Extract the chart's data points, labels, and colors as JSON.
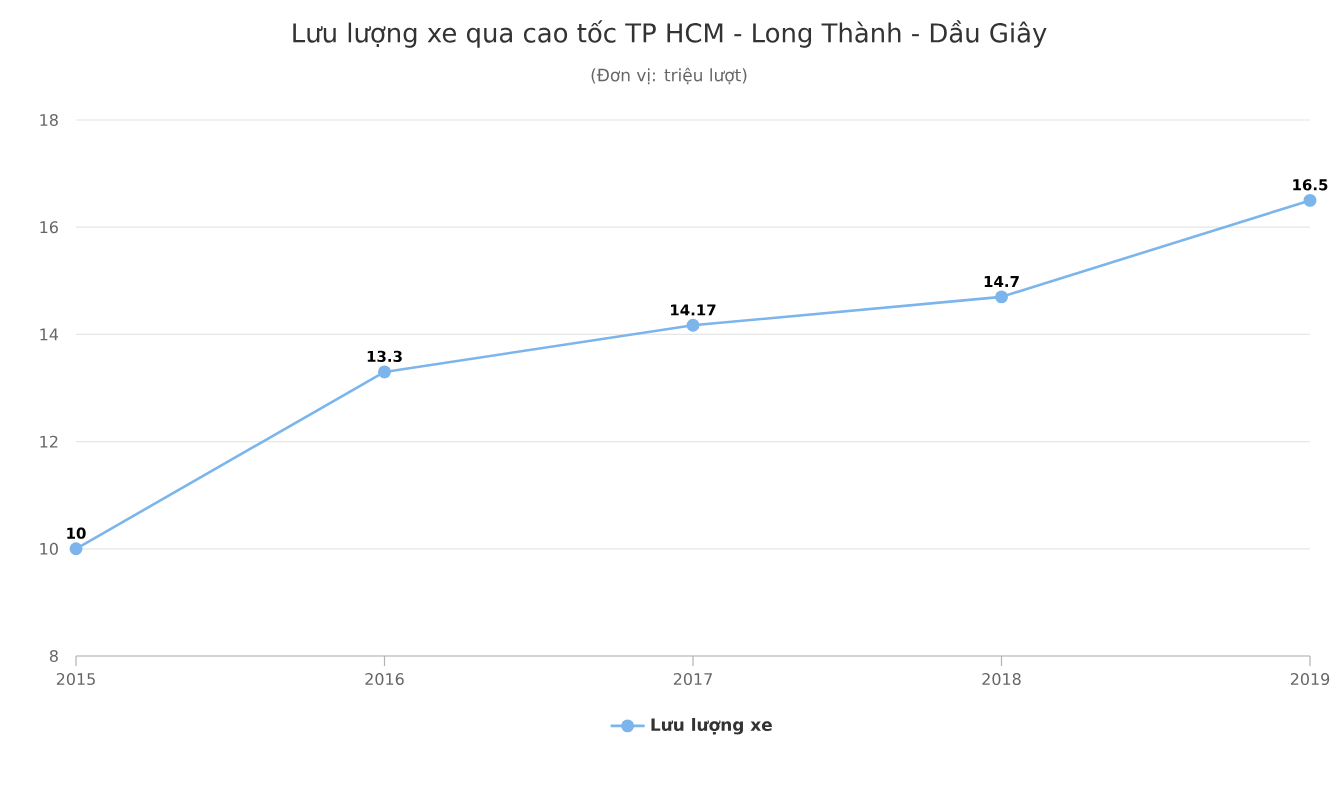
{
  "chart_data": {
    "type": "line",
    "title": "Lưu lượng xe qua cao tốc TP HCM - Long Thành - Dầu Giây",
    "subtitle": "(Đơn vị: triệu lượt)",
    "categories": [
      "2015",
      "2016",
      "2017",
      "2018",
      "2019"
    ],
    "series": [
      {
        "name": "Lưu lượng xe",
        "color": "#7cb5ec",
        "values": [
          10,
          13.3,
          14.17,
          14.7,
          16.5
        ]
      }
    ],
    "ylim": [
      8,
      18
    ],
    "yticks": [
      8,
      10,
      12,
      14,
      16,
      18
    ],
    "grid": "y",
    "legend": "bottom",
    "marker": "circle",
    "data_labels": true
  }
}
